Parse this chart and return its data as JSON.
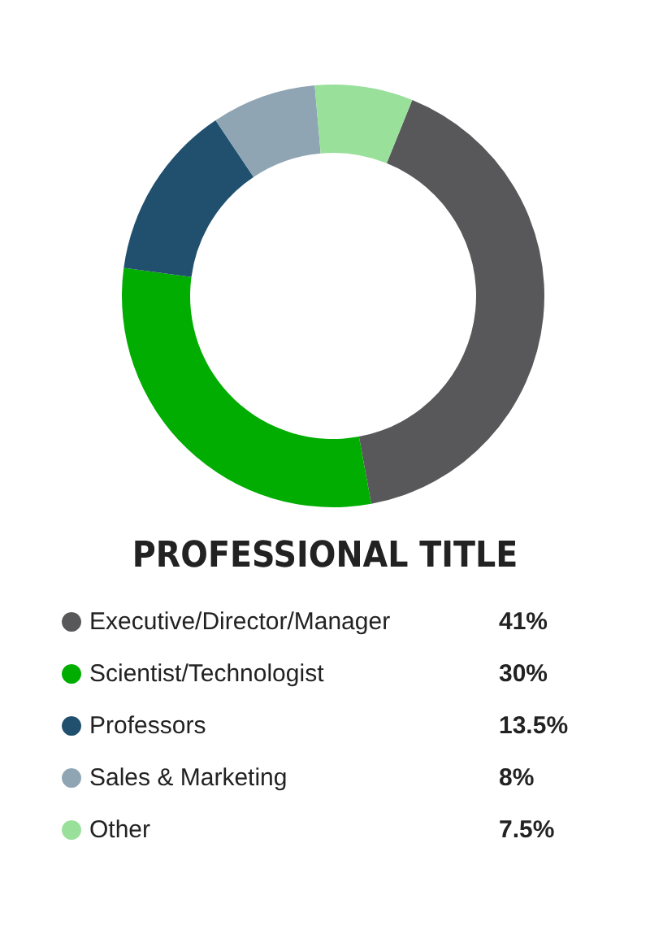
{
  "chart_data": {
    "type": "donut",
    "title": "PROFESSIONAL TITLE",
    "categories": [
      "Executive/Director/Manager",
      "Scientist/Technologist",
      "Professors",
      "Sales & Marketing",
      "Other"
    ],
    "values": [
      41,
      30,
      13.5,
      8,
      7.5
    ],
    "colors": [
      "#58585a",
      "#00ad00",
      "#20506e",
      "#8fa5b3",
      "#99e09a"
    ],
    "value_labels": [
      "41%",
      "30%",
      "13.5%",
      "8%",
      "7.5%"
    ],
    "legend": "bottom"
  }
}
